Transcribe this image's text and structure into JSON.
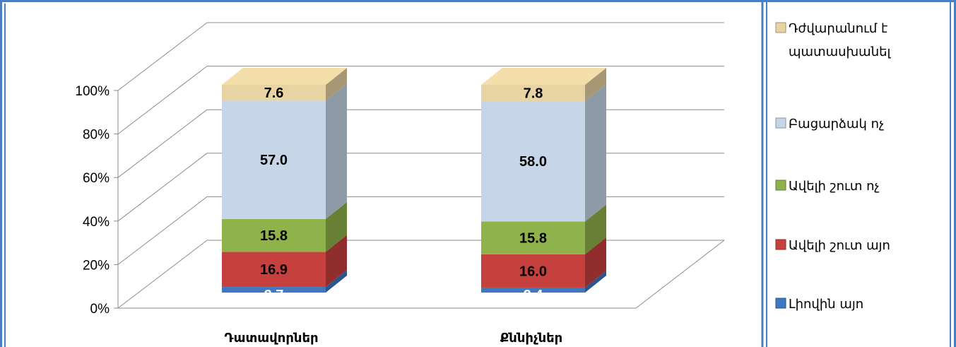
{
  "chart_data": {
    "type": "bar",
    "stacked": true,
    "percent_stacked": true,
    "three_d": true,
    "categories": [
      "Դատավորներ",
      "Քննիչներ"
    ],
    "series": [
      {
        "name": "Լիովին այո",
        "values": [
          2.7,
          2.4
        ],
        "color": "#3d78c1"
      },
      {
        "name": "Ավելի շուտ այո",
        "values": [
          16.9,
          16.0
        ],
        "color": "#c6403e"
      },
      {
        "name": "Ավելի շուտ ոչ",
        "values": [
          15.8,
          15.8
        ],
        "color": "#8fb24a"
      },
      {
        "name": "Բացարձակ ոչ",
        "values": [
          57.0,
          58.0
        ],
        "color": "#c6d6e8"
      },
      {
        "name": "Դժվարանում է պատասխանել",
        "values": [
          7.6,
          7.8
        ],
        "color": "#e8d3a2"
      }
    ],
    "y_ticks": [
      "0%",
      "20%",
      "40%",
      "60%",
      "80%",
      "100%"
    ],
    "ylim": [
      0,
      100
    ],
    "grid": true,
    "legend_position": "right",
    "border_color": "#4a7fc1"
  }
}
